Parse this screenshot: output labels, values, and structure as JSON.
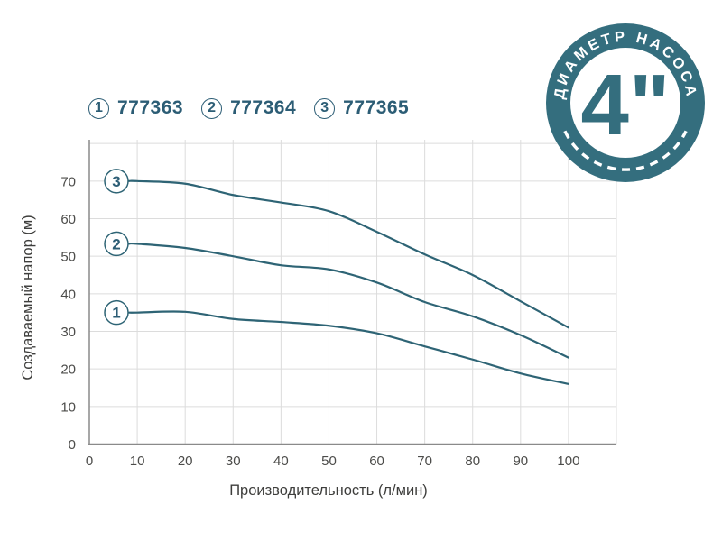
{
  "page": {
    "background": "#ffffff"
  },
  "colors": {
    "curve": "#2e6475",
    "legend_text": "#2c5d75",
    "badge_teal": "#346e7e",
    "grid": "#dcdcdc",
    "axis": "#8a8a8a",
    "tick_text": "#4c4c4a"
  },
  "legend": {
    "items": [
      {
        "index": "1",
        "code": "777363"
      },
      {
        "index": "2",
        "code": "777364"
      },
      {
        "index": "3",
        "code": "777365"
      }
    ]
  },
  "badge": {
    "top_text": "ДИАМЕТР НАСОСА",
    "size_label": "4\"",
    "color": "#346e7e"
  },
  "chart_data": {
    "type": "line",
    "title": "",
    "xlabel": "Производительность (л/мин)",
    "ylabel": "Создаваемый напор (м)",
    "xlim": [
      0,
      110
    ],
    "ylim": [
      0,
      81
    ],
    "grid": true,
    "x_ticks": [
      0,
      10,
      20,
      30,
      40,
      50,
      60,
      70,
      80,
      90,
      100
    ],
    "y_ticks": [
      0,
      10,
      20,
      30,
      40,
      50,
      60,
      70
    ],
    "line_color": "#2e6475",
    "legend_position": "top-left",
    "series": [
      {
        "label": "1",
        "name": "777363",
        "points": [
          [
            10,
            35
          ],
          [
            20,
            35.2
          ],
          [
            30,
            33.3
          ],
          [
            40,
            32.5
          ],
          [
            50,
            31.5
          ],
          [
            60,
            29.5
          ],
          [
            70,
            26
          ],
          [
            80,
            22.5
          ],
          [
            90,
            18.8
          ],
          [
            100,
            16
          ]
        ]
      },
      {
        "label": "2",
        "name": "777364",
        "points": [
          [
            10,
            53.3
          ],
          [
            20,
            52.2
          ],
          [
            30,
            50
          ],
          [
            40,
            47.6
          ],
          [
            50,
            46.5
          ],
          [
            60,
            43
          ],
          [
            70,
            37.8
          ],
          [
            80,
            34
          ],
          [
            90,
            29
          ],
          [
            100,
            23
          ]
        ]
      },
      {
        "label": "3",
        "name": "777365",
        "points": [
          [
            10,
            70
          ],
          [
            20,
            69.3
          ],
          [
            30,
            66.3
          ],
          [
            40,
            64.3
          ],
          [
            50,
            62
          ],
          [
            60,
            56.5
          ],
          [
            70,
            50.5
          ],
          [
            80,
            45
          ],
          [
            90,
            38
          ],
          [
            100,
            31
          ]
        ]
      }
    ]
  }
}
